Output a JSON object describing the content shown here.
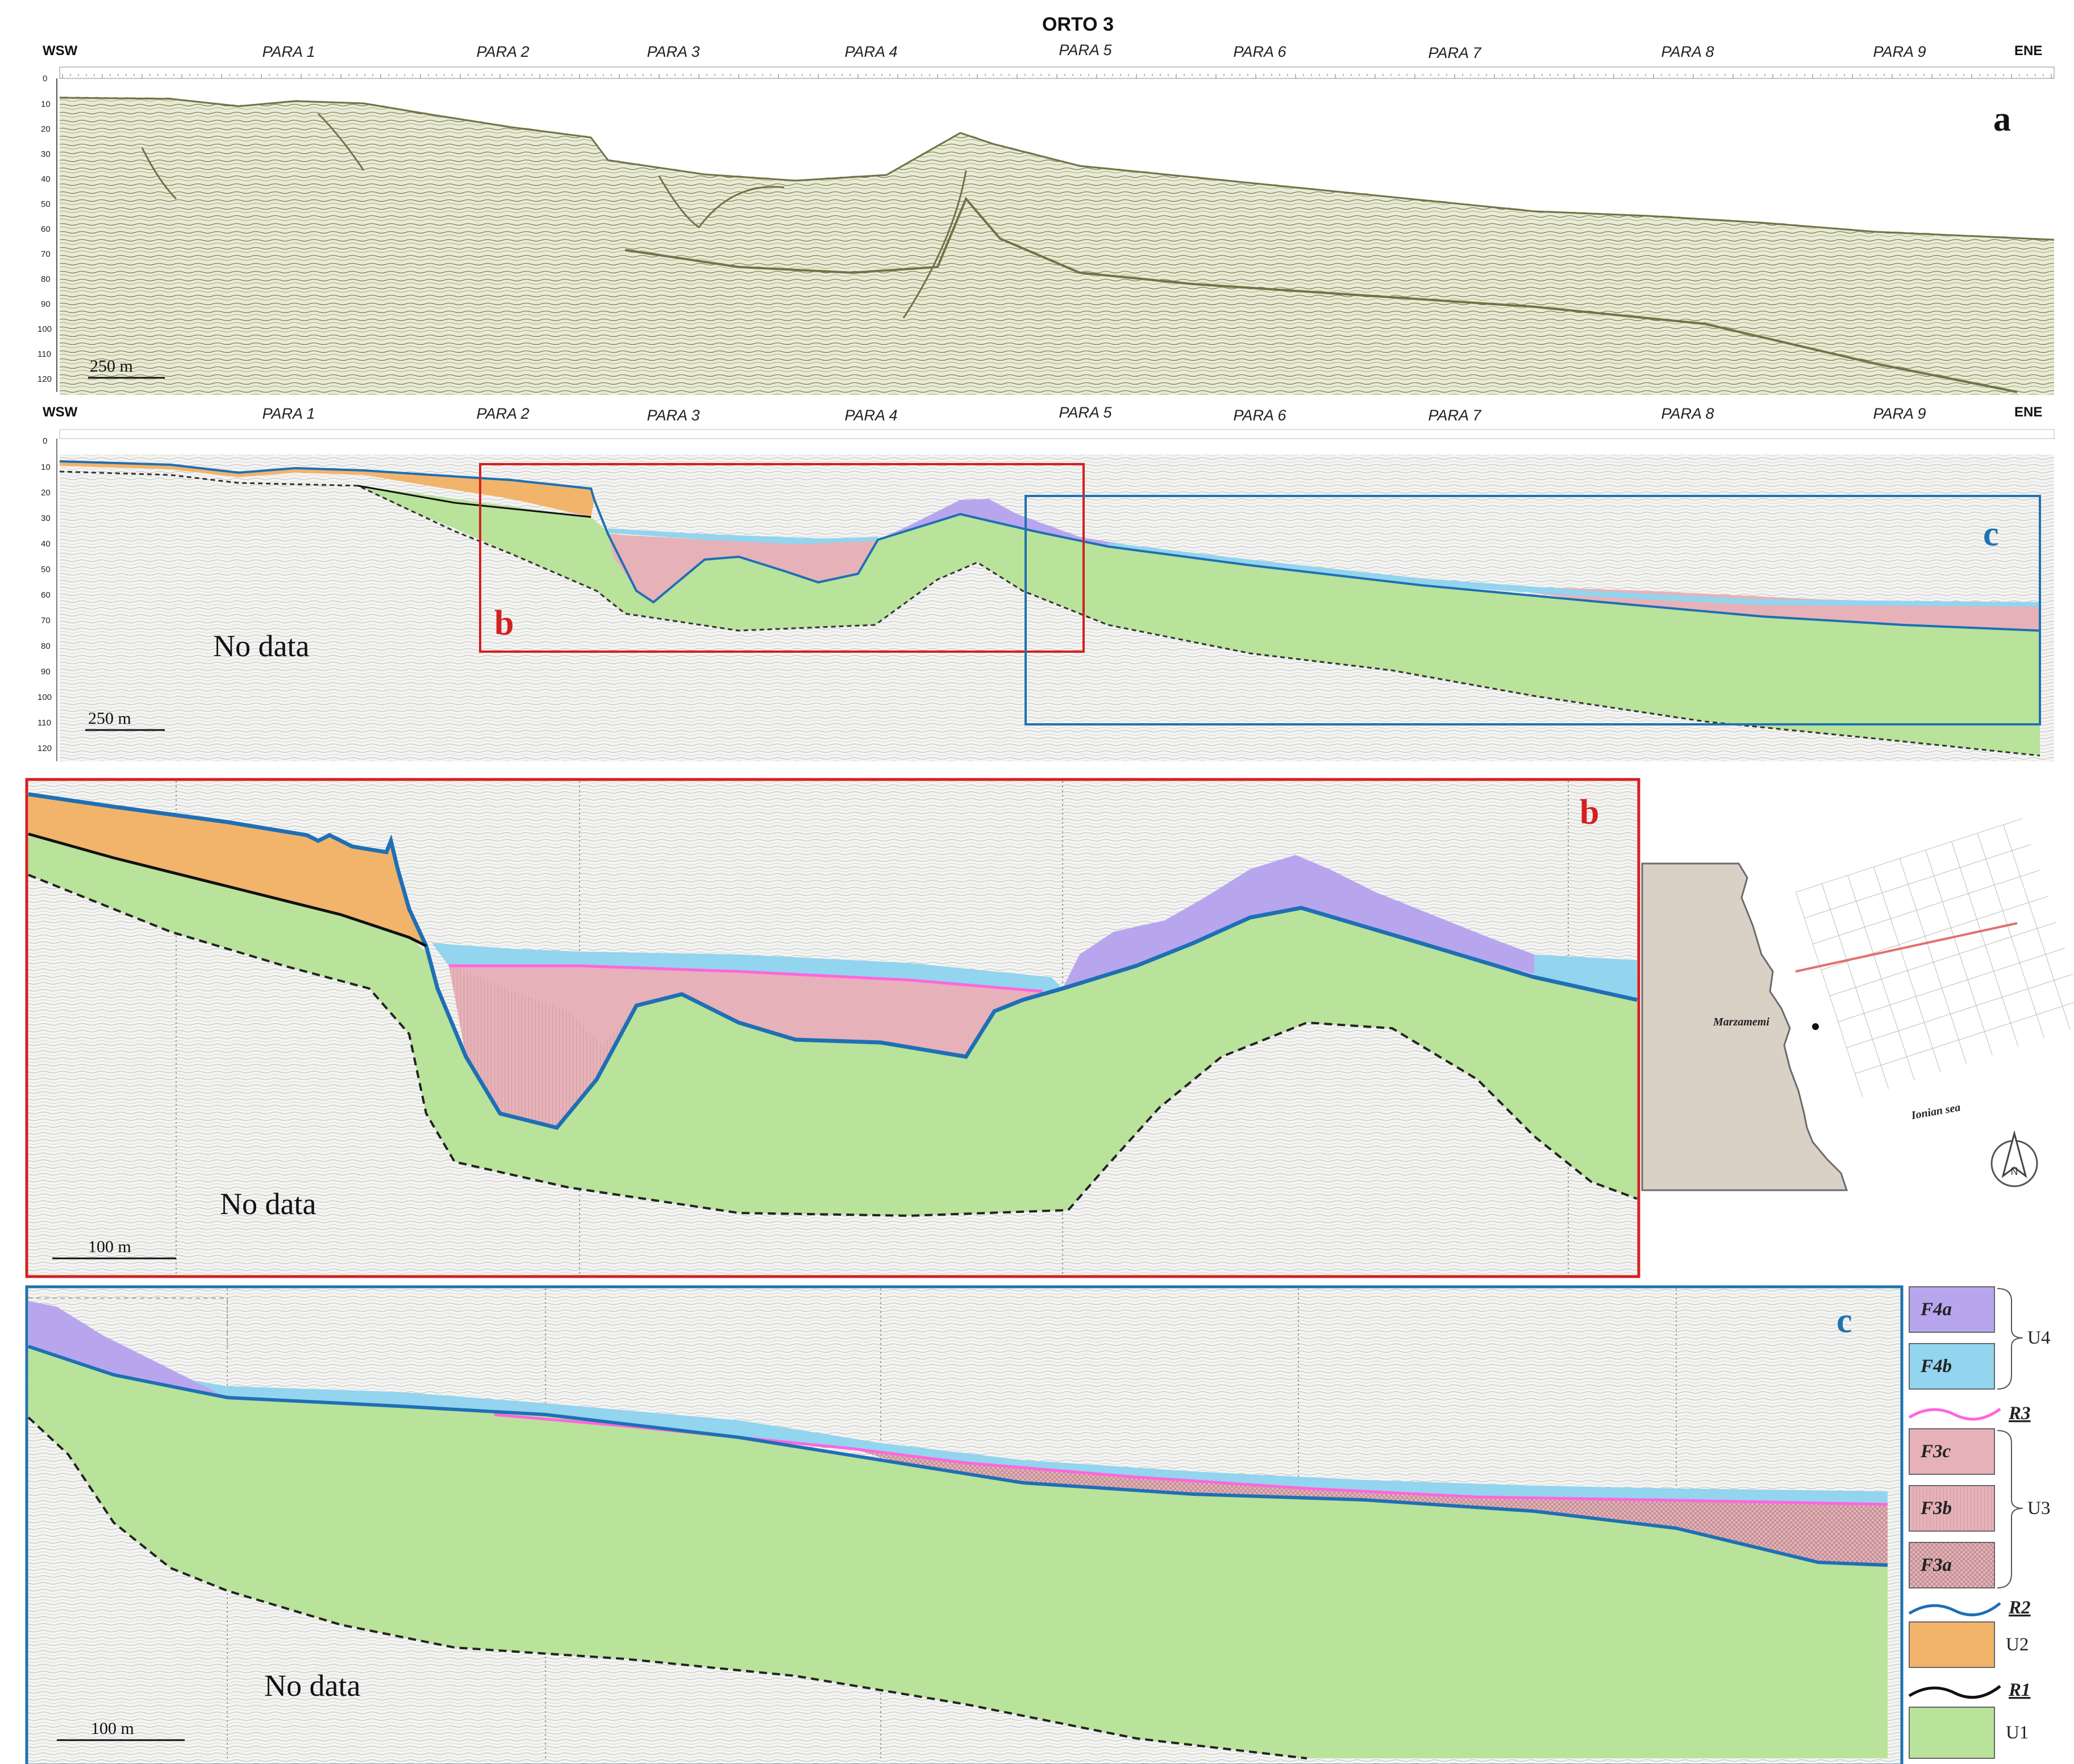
{
  "title": "ORTO 3",
  "direction": {
    "left": "WSW",
    "right": "ENE"
  },
  "para_lines": [
    "PARA 1",
    "PARA 2",
    "PARA 3",
    "PARA 4",
    "PARA 5",
    "PARA 6",
    "PARA 7",
    "PARA 8",
    "PARA 9"
  ],
  "depth_ticks": [
    "0",
    "10",
    "20",
    "30",
    "40",
    "50",
    "60",
    "70",
    "80",
    "90",
    "100",
    "110",
    "120"
  ],
  "panels": {
    "a": {
      "letter": "a",
      "scale": "250 m"
    },
    "overview": {
      "scale": "250 m",
      "no_data": "No data",
      "box_b": "b",
      "box_c": "c"
    },
    "b": {
      "letter": "b",
      "scale": "100 m",
      "no_data": "No data"
    },
    "c": {
      "letter": "c",
      "scale": "100 m",
      "no_data": "No data"
    }
  },
  "map": {
    "place": "Marzamemi",
    "sea": "Ionian sea",
    "north": "N"
  },
  "colors": {
    "U1": "#b9e29a",
    "U2": "#f2b46a",
    "F3": "#e6b2b8",
    "F4a": "#b7a6ee",
    "F4b": "#93d4ee",
    "R1": "#111111",
    "R2": "#1f6fb5",
    "R3": "#ff66dd",
    "box_b": "#d42020",
    "box_c": "#1f72b0"
  },
  "legend": {
    "F4a": "F4a",
    "F4b": "F4b",
    "U4": "U4",
    "R3": "R3",
    "F3c": "F3c",
    "F3b": "F3b",
    "F3a": "F3a",
    "U3": "U3",
    "R2": "R2",
    "U2": "U2",
    "R1": "R1",
    "U1": "U1"
  }
}
